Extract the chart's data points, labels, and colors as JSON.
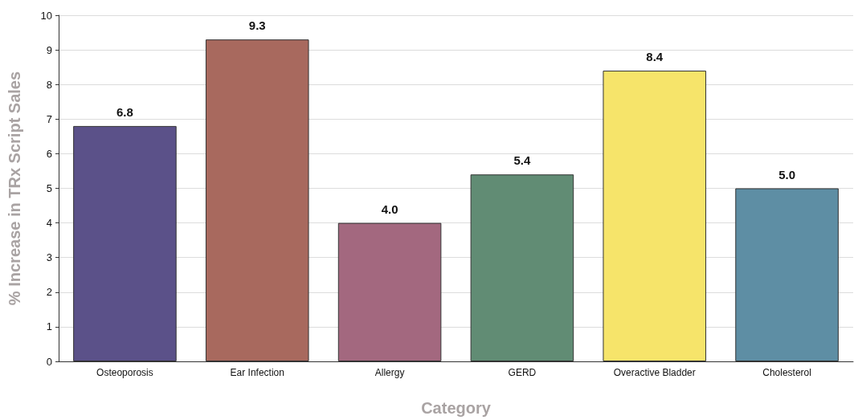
{
  "chart_data": {
    "type": "bar",
    "categories": [
      "Osteoporosis",
      "Ear Infection",
      "Allergy",
      "GERD",
      "Overactive Bladder",
      "Cholesterol"
    ],
    "values": [
      6.8,
      9.3,
      4.0,
      5.4,
      8.4,
      5.0
    ],
    "value_labels": [
      "6.8",
      "9.3",
      "4.0",
      "5.4",
      "8.4",
      "5.0"
    ],
    "colors": [
      "#5b5189",
      "#a8695e",
      "#a3687f",
      "#618c74",
      "#f6e46a",
      "#5e8ea4"
    ],
    "xlabel": "Category",
    "ylabel": "% Increase in TRx Script Sales",
    "ylim": [
      0,
      10
    ],
    "yticks": [
      0,
      1,
      2,
      3,
      4,
      5,
      6,
      7,
      8,
      9,
      10
    ],
    "grid": "y"
  }
}
